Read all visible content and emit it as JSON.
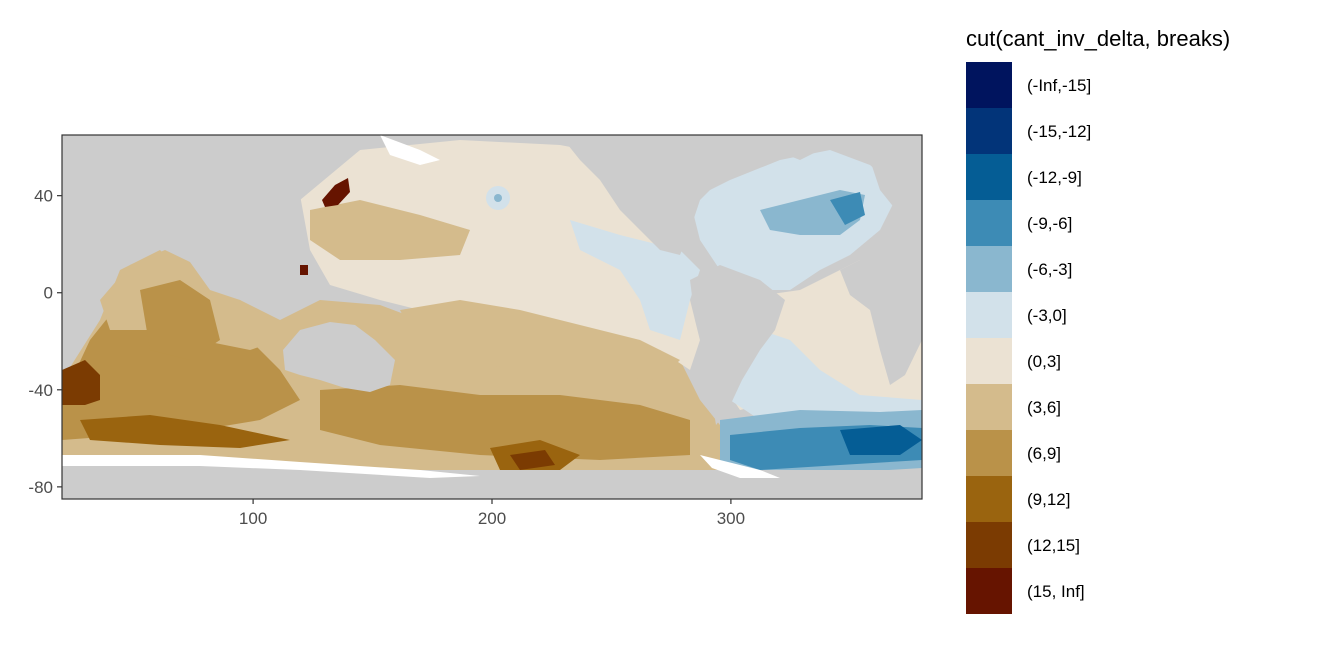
{
  "chart_data": {
    "type": "heatmap",
    "title": "",
    "xlabel": "",
    "ylabel": "",
    "xlim": [
      20,
      380
    ],
    "ylim": [
      -85,
      65
    ],
    "x_ticks": [
      100,
      200,
      300
    ],
    "x_tick_labels": [
      "100",
      "200",
      "300"
    ],
    "y_ticks": [
      40,
      0,
      -40,
      -80
    ],
    "y_tick_labels": [
      "40",
      "0",
      "-40",
      "-80"
    ],
    "grid": false,
    "land_color": "#cccccc",
    "legend": {
      "title": "cut(cant_inv_delta, breaks)",
      "placement": "right",
      "items": [
        {
          "label": "(-Inf,-15]",
          "color": "#00145e"
        },
        {
          "label": "(-15,-12]",
          "color": "#023479"
        },
        {
          "label": "(-12,-9]",
          "color": "#055d95"
        },
        {
          "label": "(-9,-6]",
          "color": "#3d8bb5"
        },
        {
          "label": "(-6,-3]",
          "color": "#8ab7cf"
        },
        {
          "label": "(-3,0]",
          "color": "#d2e1ea"
        },
        {
          "label": "(0,3]",
          "color": "#ebe2d3"
        },
        {
          "label": "(3,6]",
          "color": "#d4bb8c"
        },
        {
          "label": "(6,9]",
          "color": "#ba9249"
        },
        {
          "label": "(9,12]",
          "color": "#9a640f"
        },
        {
          "label": "(12,15]",
          "color": "#7b3b02"
        },
        {
          "label": "(15, Inf]",
          "color": "#661400"
        }
      ]
    }
  }
}
